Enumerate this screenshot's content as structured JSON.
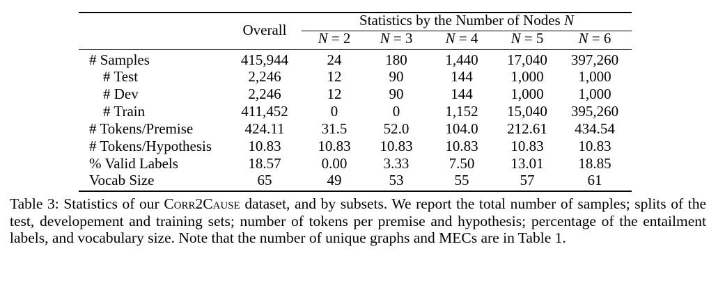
{
  "table": {
    "header": {
      "overall": "Overall",
      "group_title": "Statistics by the Number of Nodes",
      "group_var": "N",
      "subheaders": [
        {
          "var": "N",
          "rest": " = 2"
        },
        {
          "var": "N",
          "rest": " = 3"
        },
        {
          "var": "N",
          "rest": " = 4"
        },
        {
          "var": "N",
          "rest": " = 5"
        },
        {
          "var": "N",
          "rest": " = 6"
        }
      ]
    },
    "rows": [
      {
        "label": "# Samples",
        "cells": [
          "415,944",
          "24",
          "180",
          "1,440",
          "17,040",
          "397,260"
        ]
      },
      {
        "label": "# Test",
        "cells": [
          "2,246",
          "12",
          "90",
          "144",
          "1,000",
          "1,000"
        ]
      },
      {
        "label": "# Dev",
        "cells": [
          "2,246",
          "12",
          "90",
          "144",
          "1,000",
          "1,000"
        ]
      },
      {
        "label": "# Train",
        "cells": [
          "411,452",
          "0",
          "0",
          "1,152",
          "15,040",
          "395,260"
        ]
      },
      {
        "label": "# Tokens/Premise",
        "cells": [
          "424.11",
          "31.5",
          "52.0",
          "104.0",
          "212.61",
          "434.54"
        ]
      },
      {
        "label": "# Tokens/Hypothesis",
        "cells": [
          "10.83",
          "10.83",
          "10.83",
          "10.83",
          "10.83",
          "10.83"
        ]
      },
      {
        "label": "% Valid Labels",
        "cells": [
          "18.57",
          "0.00",
          "3.33",
          "7.50",
          "13.01",
          "18.85"
        ]
      },
      {
        "label": "Vocab Size",
        "cells": [
          "65",
          "49",
          "53",
          "55",
          "57",
          "61"
        ]
      }
    ]
  },
  "caption": {
    "prefix": "Table 3: Statistics of our ",
    "dataset_name": "Corr2Cause",
    "body": " dataset, and by subsets. We report the total number of samples; splits of the test, developement and training sets; number of tokens per premise and hypothesis; percentage of the entailment labels, and vocabulary size. Note that the number of unique graphs and MECs are in Table 1."
  }
}
